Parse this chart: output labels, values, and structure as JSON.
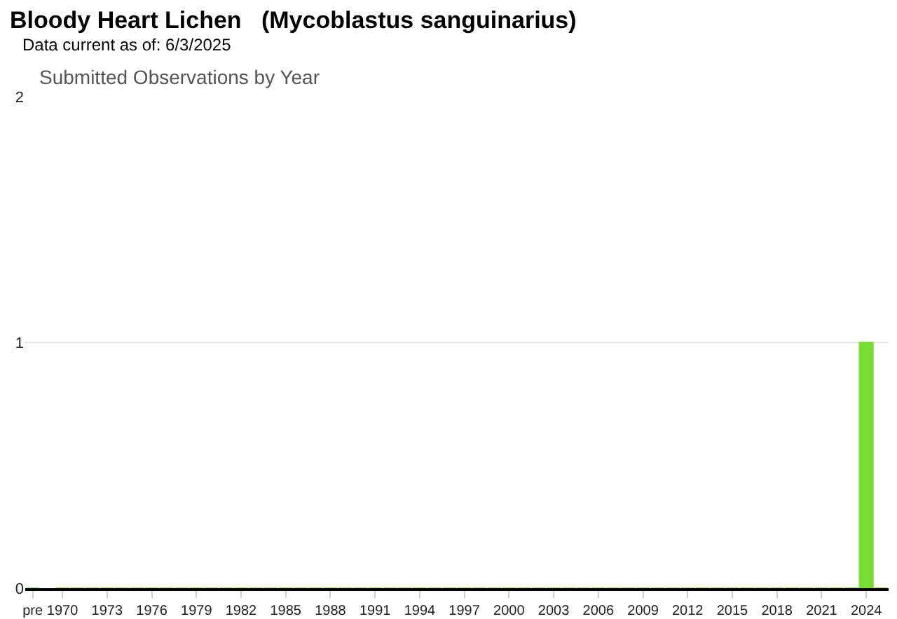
{
  "chart_data": {
    "type": "bar",
    "title": "Bloody Heart Lichen   (Mycoblastus sanguinarius)",
    "subtitle": "Data current as of: 6/3/2025",
    "annotations": [
      "Submitted Observations by Year"
    ],
    "categories": [
      "pre",
      "1970",
      null,
      null,
      "1973",
      null,
      null,
      "1976",
      null,
      null,
      "1979",
      null,
      null,
      "1982",
      null,
      null,
      "1985",
      null,
      null,
      "1988",
      null,
      null,
      "1991",
      null,
      null,
      "1994",
      null,
      null,
      "1997",
      null,
      null,
      "2000",
      null,
      null,
      "2003",
      null,
      null,
      "2006",
      null,
      null,
      "2009",
      null,
      null,
      "2012",
      null,
      null,
      "2015",
      null,
      null,
      "2018",
      null,
      null,
      "2021",
      null,
      null,
      "2024",
      null
    ],
    "values": [
      0,
      0,
      0,
      0,
      0,
      0,
      0,
      0,
      0,
      0,
      0,
      0,
      0,
      0,
      0,
      0,
      0,
      0,
      0,
      0,
      0,
      0,
      0,
      0,
      0,
      0,
      0,
      0,
      0,
      0,
      0,
      0,
      0,
      0,
      0,
      0,
      0,
      0,
      0,
      0,
      0,
      0,
      0,
      0,
      0,
      0,
      0,
      0,
      0,
      0,
      0,
      0,
      0,
      0,
      0,
      1,
      0
    ],
    "color": "#77dd33",
    "ylim": [
      0,
      2
    ],
    "yticks": [
      0,
      1,
      2
    ],
    "grid": "y"
  }
}
